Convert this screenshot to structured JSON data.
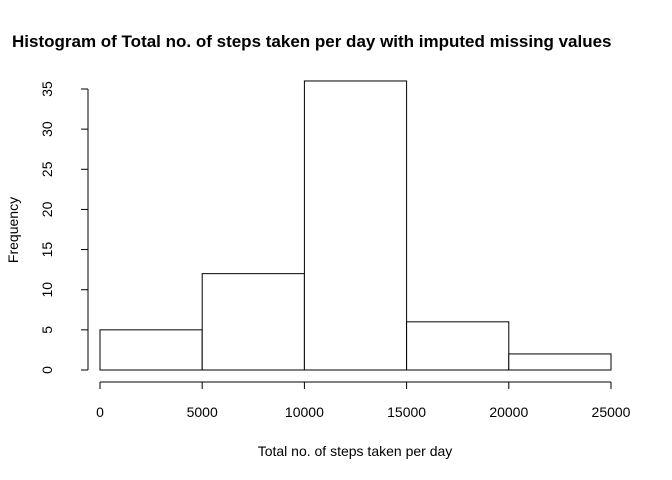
{
  "chart_data": {
    "type": "bar",
    "subtype": "histogram",
    "title": "Histogram of Total no. of steps taken per day with imputed missing values",
    "xlabel": "Total no. of steps taken per day",
    "ylabel": "Frequency",
    "bins": [
      {
        "start": 0,
        "end": 5000,
        "count": 5
      },
      {
        "start": 5000,
        "end": 10000,
        "count": 12
      },
      {
        "start": 10000,
        "end": 15000,
        "count": 36
      },
      {
        "start": 15000,
        "end": 20000,
        "count": 6
      },
      {
        "start": 20000,
        "end": 25000,
        "count": 2
      }
    ],
    "xlim": [
      0,
      25000
    ],
    "ylim": [
      0,
      35
    ],
    "x_ticks": [
      "0",
      "5000",
      "10000",
      "15000",
      "20000",
      "25000"
    ],
    "y_ticks": [
      "0",
      "5",
      "10",
      "15",
      "20",
      "25",
      "30",
      "35"
    ],
    "grid": false,
    "bar_fill": "#ffffff",
    "bar_stroke": "#000000"
  }
}
